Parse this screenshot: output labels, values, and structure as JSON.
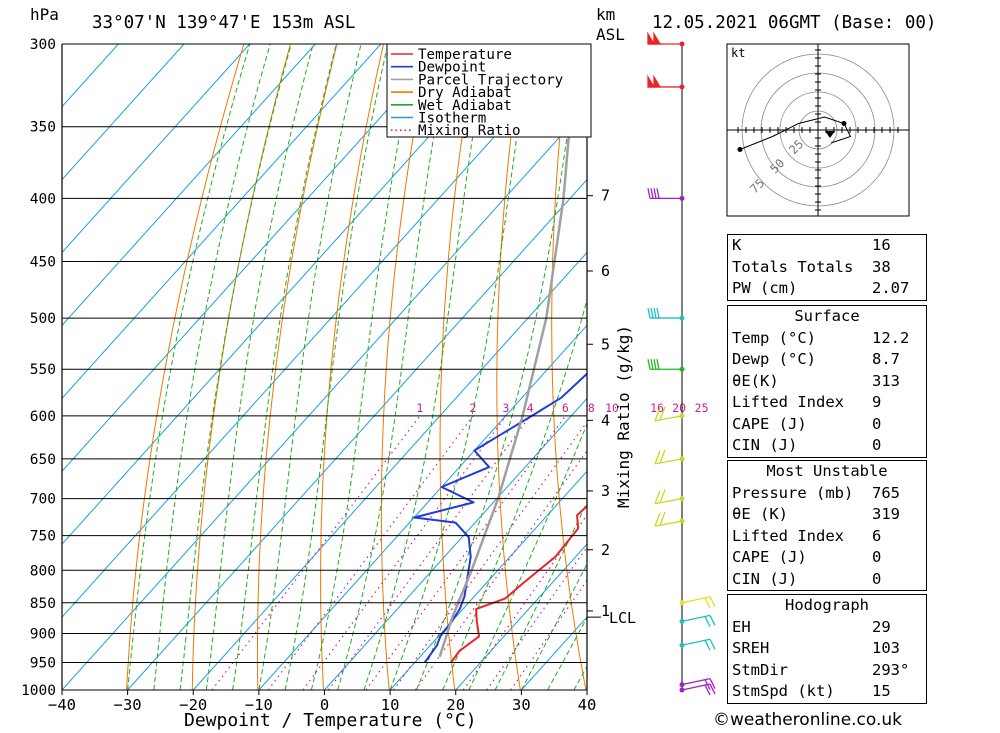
{
  "header": {
    "units_hpa": "hPa",
    "location": "33°07'N  139°47'E  153m  ASL",
    "km": "km",
    "asl": "ASL",
    "datetime": "12.05.2021  06GMT  (Base: 00)"
  },
  "footer": {
    "credit": "©weatheronline.co.uk"
  },
  "chart_data": {
    "type": "line",
    "subtype": "skew-T log-P diagram",
    "xlabel": "Dewpoint / Temperature (°C)",
    "ylabel": "hPa",
    "right_axis_label": "Mixing Ratio (g/kg)",
    "xlim": [
      -40,
      40
    ],
    "ylim": [
      1000,
      300
    ],
    "x_ticks": [
      "-40",
      "-30",
      "-20",
      "-10",
      "0",
      "10",
      "20",
      "30",
      "40"
    ],
    "pressure_levels": [
      300,
      350,
      400,
      450,
      500,
      550,
      600,
      650,
      700,
      750,
      800,
      850,
      900,
      950,
      1000
    ],
    "km_ticks": [
      {
        "km": "1",
        "p": 863
      },
      {
        "km": "2",
        "p": 770
      },
      {
        "km": "3",
        "p": 690
      },
      {
        "km": "4",
        "p": 605
      },
      {
        "km": "5",
        "p": 525
      },
      {
        "km": "6",
        "p": 458
      },
      {
        "km": "7",
        "p": 398
      }
    ],
    "lcl": {
      "label": "LCL",
      "p": 873
    },
    "mixing_ratio_labels": [
      "1",
      "2",
      "3",
      "4",
      "6",
      "8",
      "10",
      "16",
      "20",
      "25"
    ],
    "legend": {
      "placement": "top-right of plot",
      "items": [
        {
          "name": "Temperature",
          "color": "#e8262a",
          "style": "solid"
        },
        {
          "name": "Dewpoint",
          "color": "#1f3cd8",
          "style": "solid"
        },
        {
          "name": "Parcel Trajectory",
          "color": "#a0a0a0",
          "style": "solid"
        },
        {
          "name": "Dry Adiabat",
          "color": "#f07800",
          "style": "solid"
        },
        {
          "name": "Wet Adiabat",
          "color": "#22aa22",
          "style": "solid"
        },
        {
          "name": "Isotherm",
          "color": "#1aa0e0",
          "style": "solid"
        },
        {
          "name": "Mixing Ratio",
          "color": "#cc1e8e",
          "style": "dotted"
        }
      ]
    },
    "series": [
      {
        "name": "Temperature",
        "points": [
          [
            950,
            15.5
          ],
          [
            930,
            15.2
          ],
          [
            905,
            16.2
          ],
          [
            880,
            13.8
          ],
          [
            860,
            12.0
          ],
          [
            843,
            15.0
          ],
          [
            820,
            15.6
          ],
          [
            780,
            16.9
          ],
          [
            740,
            16.5
          ],
          [
            722,
            14.5
          ],
          [
            710,
            14.8
          ],
          [
            680,
            12.5
          ],
          [
            650,
            10.0
          ],
          [
            620,
            8.0
          ],
          [
            590,
            5.5
          ],
          [
            572,
            3.8
          ],
          [
            540,
            3.2
          ],
          [
            500,
            1.5
          ],
          [
            450,
            -2.0
          ],
          [
            400,
            -5.5
          ],
          [
            370,
            -8.0
          ],
          [
            350,
            -11.5
          ],
          [
            300,
            -19.0
          ]
        ]
      },
      {
        "name": "Dewpoint",
        "points": [
          [
            950,
            11.5
          ],
          [
            920,
            11.0
          ],
          [
            905,
            10.3
          ],
          [
            880,
            10.0
          ],
          [
            860,
            9.5
          ],
          [
            840,
            8.5
          ],
          [
            780,
            4.0
          ],
          [
            752,
            1.0
          ],
          [
            732,
            -3.0
          ],
          [
            725,
            -10.0
          ],
          [
            705,
            -3.0
          ],
          [
            685,
            -10.0
          ],
          [
            660,
            -5.5
          ],
          [
            640,
            -10.0
          ],
          [
            600,
            -6.0
          ],
          [
            580,
            -4.0
          ],
          [
            560,
            -3.5
          ],
          [
            540,
            -3.0
          ],
          [
            500,
            -5.0
          ],
          [
            450,
            -8.5
          ],
          [
            400,
            -12.0
          ],
          [
            350,
            -17.5
          ],
          [
            300,
            -25.0
          ]
        ]
      },
      {
        "name": "Parcel Trajectory",
        "points": [
          [
            940,
            13.0
          ],
          [
            873,
            9.5
          ],
          [
            800,
            6.0
          ],
          [
            700,
            0.2
          ],
          [
            600,
            -7.4
          ],
          [
            500,
            -17.2
          ],
          [
            400,
            -31.0
          ],
          [
            310,
            -48.0
          ]
        ]
      }
    ],
    "wind_barbs": [
      {
        "p": 300,
        "color": "#e8262a"
      },
      {
        "p": 325,
        "color": "#e8262a"
      },
      {
        "p": 400,
        "color": "#a020c0"
      },
      {
        "p": 500,
        "color": "#20c0c0"
      },
      {
        "p": 550,
        "color": "#20b820"
      },
      {
        "p": 600,
        "color": "#c8d820"
      },
      {
        "p": 650,
        "color": "#c8d820"
      },
      {
        "p": 700,
        "color": "#c8d820"
      },
      {
        "p": 730,
        "color": "#c8d820"
      },
      {
        "p": 850,
        "color": "#e8e020"
      },
      {
        "p": 880,
        "color": "#20c0c0"
      },
      {
        "p": 920,
        "color": "#20c0c0"
      },
      {
        "p": 990,
        "color": "#a020c0"
      },
      {
        "p": 1000,
        "color": "#a020c0"
      }
    ],
    "hodograph": {
      "unit": "kt",
      "ring_labels": [
        "25",
        "50",
        "75"
      ],
      "trace": [
        [
          -12,
          -3
        ],
        [
          -7,
          -1
        ],
        [
          -3,
          1
        ],
        [
          1,
          2
        ],
        [
          4,
          1
        ],
        [
          5,
          -1
        ],
        [
          2,
          -2
        ]
      ],
      "storm_motion": {
        "dir": "293°",
        "speed_kt": 15
      }
    }
  },
  "indices": {
    "general": [
      {
        "label": "K",
        "value": "16"
      },
      {
        "label": "Totals Totals",
        "value": "38"
      },
      {
        "label": "PW (cm)",
        "value": "2.07"
      }
    ],
    "surface": {
      "title": "Surface",
      "rows": [
        {
          "label": "Temp (°C)",
          "value": "12.2"
        },
        {
          "label": "Dewp (°C)",
          "value": "8.7"
        },
        {
          "label": "θE(K)",
          "value": "313"
        },
        {
          "label": "Lifted Index",
          "value": "9"
        },
        {
          "label": "CAPE (J)",
          "value": "0"
        },
        {
          "label": "CIN (J)",
          "value": "0"
        }
      ]
    },
    "most_unstable": {
      "title": "Most Unstable",
      "rows": [
        {
          "label": "Pressure (mb)",
          "value": "765"
        },
        {
          "label": "θE (K)",
          "value": "319"
        },
        {
          "label": "Lifted Index",
          "value": "6"
        },
        {
          "label": "CAPE (J)",
          "value": "0"
        },
        {
          "label": "CIN (J)",
          "value": "0"
        }
      ]
    },
    "hodograph": {
      "title": "Hodograph",
      "rows": [
        {
          "label": "EH",
          "value": "29"
        },
        {
          "label": "SREH",
          "value": "103"
        },
        {
          "label": "StmDir",
          "value": "293°"
        },
        {
          "label": "StmSpd (kt)",
          "value": "15"
        }
      ]
    }
  },
  "colors": {
    "temperature": "#e8262a",
    "dewpoint": "#1f3cd8",
    "parcel": "#a0a0a0",
    "dry_adiabat": "#f07800",
    "wet_adiabat": "#22aa22",
    "isotherm": "#1aa0e0",
    "mixing_ratio": "#cc1e8e"
  }
}
